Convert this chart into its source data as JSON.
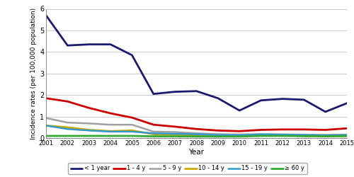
{
  "years": [
    2001,
    2002,
    2003,
    2004,
    2005,
    2006,
    2007,
    2008,
    2009,
    2010,
    2011,
    2012,
    2013,
    2014,
    2015
  ],
  "series": {
    "< 1 year": [
      5.7,
      4.3,
      4.35,
      4.35,
      3.85,
      2.05,
      2.15,
      2.18,
      1.85,
      1.28,
      1.75,
      1.82,
      1.78,
      1.22,
      1.62
    ],
    "1 - 4 y": [
      1.85,
      1.7,
      1.4,
      1.15,
      0.95,
      0.62,
      0.53,
      0.42,
      0.35,
      0.32,
      0.38,
      0.4,
      0.4,
      0.38,
      0.45
    ],
    "5 - 9 y": [
      0.93,
      0.72,
      0.68,
      0.62,
      0.62,
      0.3,
      0.28,
      0.22,
      0.18,
      0.17,
      0.18,
      0.17,
      0.16,
      0.15,
      0.16
    ],
    "10 - 14 y": [
      0.58,
      0.5,
      0.38,
      0.32,
      0.35,
      0.18,
      0.16,
      0.13,
      0.1,
      0.1,
      0.12,
      0.13,
      0.1,
      0.09,
      0.1
    ],
    "15 - 19 y": [
      0.58,
      0.42,
      0.35,
      0.3,
      0.3,
      0.22,
      0.2,
      0.18,
      0.14,
      0.13,
      0.17,
      0.16,
      0.14,
      0.12,
      0.14
    ],
    "≥ 60 y": [
      0.1,
      0.1,
      0.1,
      0.1,
      0.1,
      0.08,
      0.08,
      0.07,
      0.07,
      0.07,
      0.1,
      0.1,
      0.09,
      0.08,
      0.09
    ]
  },
  "colors": {
    "< 1 year": "#1a1a6e",
    "1 - 4 y": "#cc0000",
    "5 - 9 y": "#a0a0a0",
    "10 - 14 y": "#ccaa00",
    "15 - 19 y": "#3399cc",
    "≥ 60 y": "#33aa33"
  },
  "linewidths": {
    "< 1 year": 2.0,
    "1 - 4 y": 2.0,
    "5 - 9 y": 1.8,
    "10 - 14 y": 2.0,
    "15 - 19 y": 1.8,
    "≥ 60 y": 2.0
  },
  "ylabel": "Incidence rates (per 100,000 population)",
  "xlabel": "Year",
  "ylim": [
    0,
    6
  ],
  "yticks": [
    0,
    1,
    2,
    3,
    4,
    5,
    6
  ],
  "background_color": "#ffffff",
  "grid_color": "#cccccc"
}
